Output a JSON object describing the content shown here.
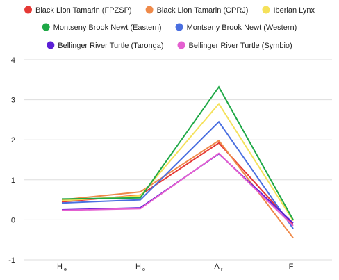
{
  "chart_data": {
    "type": "line",
    "categories": [
      {
        "base": "H",
        "sub": "e"
      },
      {
        "base": "H",
        "sub": "o"
      },
      {
        "base": "A",
        "sub": "r"
      },
      {
        "base": "F",
        "sub": ""
      }
    ],
    "ylim": [
      -1,
      4
    ],
    "yticks": [
      -1,
      0,
      1,
      2,
      3,
      4
    ],
    "grid": "horizontal",
    "legend_position": "top",
    "series": [
      {
        "name": "Black Lion Tamarin (FPZSP)",
        "color": "#e53935",
        "values": [
          0.45,
          0.62,
          1.92,
          -0.12
        ]
      },
      {
        "name": "Black Lion Tamarin (CPRJ)",
        "color": "#ef8a4a",
        "values": [
          0.5,
          0.7,
          1.98,
          -0.45
        ]
      },
      {
        "name": "Iberian Lynx",
        "color": "#f5e15a",
        "values": [
          0.48,
          0.6,
          2.9,
          -0.02
        ]
      },
      {
        "name": "Montseny Brook Newt (Eastern)",
        "color": "#1ea846",
        "values": [
          0.52,
          0.55,
          3.32,
          0.0
        ]
      },
      {
        "name": "Montseny Brook Newt (Western)",
        "color": "#4a6fe0",
        "values": [
          0.42,
          0.5,
          2.45,
          -0.22
        ]
      },
      {
        "name": "Bellinger River Turtle (Taronga)",
        "color": "#5b1fd6",
        "values": [
          0.25,
          0.3,
          1.65,
          -0.08
        ]
      },
      {
        "name": "Bellinger River Turtle (Symbio)",
        "color": "#e45fd0",
        "values": [
          0.24,
          0.28,
          1.66,
          -0.15
        ]
      }
    ]
  }
}
